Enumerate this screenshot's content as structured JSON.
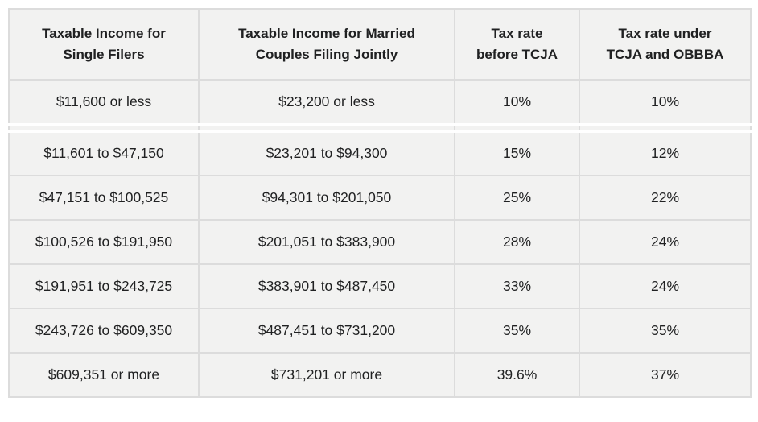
{
  "chart_data": {
    "type": "table",
    "title": "",
    "columns": [
      "Taxable Income for Single Filers",
      "Taxable Income for Married Couples Filing Jointly",
      "Tax rate before TCJA",
      "Tax rate under TCJA and OBBBA"
    ],
    "rows": [
      [
        "$11,600 or less",
        "$23,200 or less",
        "10%",
        "10%"
      ],
      [
        "$11,601 to $47,150",
        "$23,201 to $94,300",
        "15%",
        "12%"
      ],
      [
        "$47,151 to $100,525",
        "$94,301 to $201,050",
        "25%",
        "22%"
      ],
      [
        "$100,526 to $191,950",
        "$201,051 to $383,900",
        "28%",
        "24%"
      ],
      [
        "$191,951 to $243,725",
        "$383,901 to $487,450",
        "33%",
        "24%"
      ],
      [
        "$243,726 to $609,350",
        "$487,451 to $731,200",
        "35%",
        "35%"
      ],
      [
        "$609,351 or more",
        "$731,201 or more",
        "39.6%",
        "37%"
      ]
    ],
    "colors": {
      "cell_background": "#f2f2f1",
      "border": "#dcdcdc",
      "text": "#202122",
      "page_background": "#ffffff"
    }
  },
  "header_lines": [
    {
      "line1": "Taxable Income for",
      "line2": "Single Filers"
    },
    {
      "line1": "Taxable Income for Married",
      "line2": "Couples Filing Jointly"
    },
    {
      "line1": "Tax rate",
      "line2": "before TCJA"
    },
    {
      "line1": "Tax rate under",
      "line2": "TCJA and OBBBA"
    }
  ]
}
